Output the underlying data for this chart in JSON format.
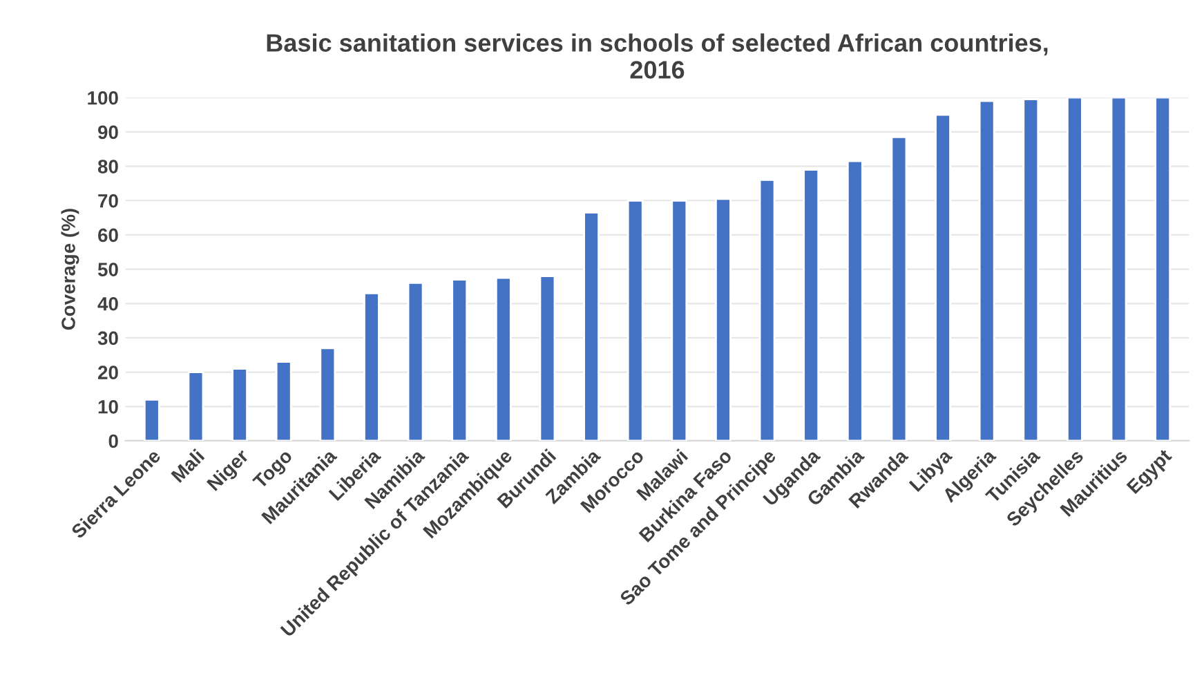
{
  "chart_data": {
    "type": "bar",
    "title": "Basic sanitation services in schools of selected African countries,\n2016",
    "ylabel": "Coverage (%)",
    "categories": [
      "Sierra Leone",
      "Mali",
      "Niger",
      "Togo",
      "Mauritania",
      "Liberia",
      "Namibia",
      "United Republic of Tanzania",
      "Mozambique",
      "Burundi",
      "Zambia",
      "Morocco",
      "Malawi",
      "Burkina Faso",
      "Sao Tome and Principe",
      "Uganda",
      "Gambia",
      "Rwanda",
      "Libya",
      "Algeria",
      "Tunisia",
      "Seychelles",
      "Mauritius",
      "Egypt"
    ],
    "values": [
      12,
      20,
      21,
      23,
      27,
      43,
      46,
      47,
      47.5,
      48,
      66.5,
      70,
      70,
      70.5,
      76,
      79,
      81.5,
      88.5,
      95,
      99,
      99.5,
      100,
      100,
      100
    ],
    "color": "#4472c4",
    "ylim": [
      0,
      100
    ],
    "yticks": [
      0,
      10,
      20,
      30,
      40,
      50,
      60,
      70,
      80,
      90,
      100
    ],
    "grid": "y"
  }
}
